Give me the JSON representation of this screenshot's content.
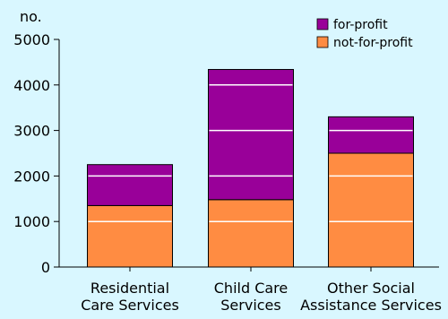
{
  "chart_data": {
    "type": "bar",
    "stacked": true,
    "ylabel": "no.",
    "ylim": [
      0,
      5000
    ],
    "yticks": [
      0,
      1000,
      2000,
      3000,
      4000,
      5000
    ],
    "grid": "horizontal-white-inside-bars",
    "legend": "top-right",
    "categories": [
      [
        "Residential",
        "Care Services"
      ],
      [
        "Child Care",
        "Services"
      ],
      [
        "Other Social",
        "Assistance Services"
      ]
    ],
    "series": [
      {
        "name": "not-for-profit",
        "color": "#ff8c42",
        "values": [
          1350,
          1480,
          2500
        ]
      },
      {
        "name": "for-profit",
        "color": "#990099",
        "values": [
          900,
          2860,
          800
        ]
      }
    ],
    "legend_order": [
      "for-profit",
      "not-for-profit"
    ]
  }
}
